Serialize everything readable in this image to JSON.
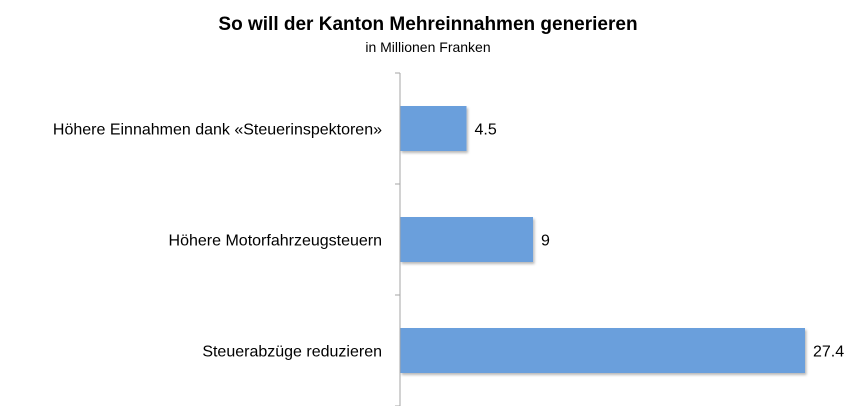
{
  "chart_data": {
    "type": "bar",
    "orientation": "horizontal",
    "title": "So will der Kanton Mehreinnahmen generieren",
    "subtitle": "in Millionen Franken",
    "categories": [
      "Höhere Einnahmen dank «Steuerinspektoren»",
      "Höhere Motorfahrzeugsteuern",
      "Steuerabzüge reduzieren"
    ],
    "values": [
      4.5,
      9,
      27.4
    ],
    "value_labels": [
      "4.5",
      "9",
      "27.4"
    ],
    "bar_color": "#6a9fdc",
    "xlim": [
      0,
      27.4
    ],
    "grid": false,
    "legend": "none"
  }
}
